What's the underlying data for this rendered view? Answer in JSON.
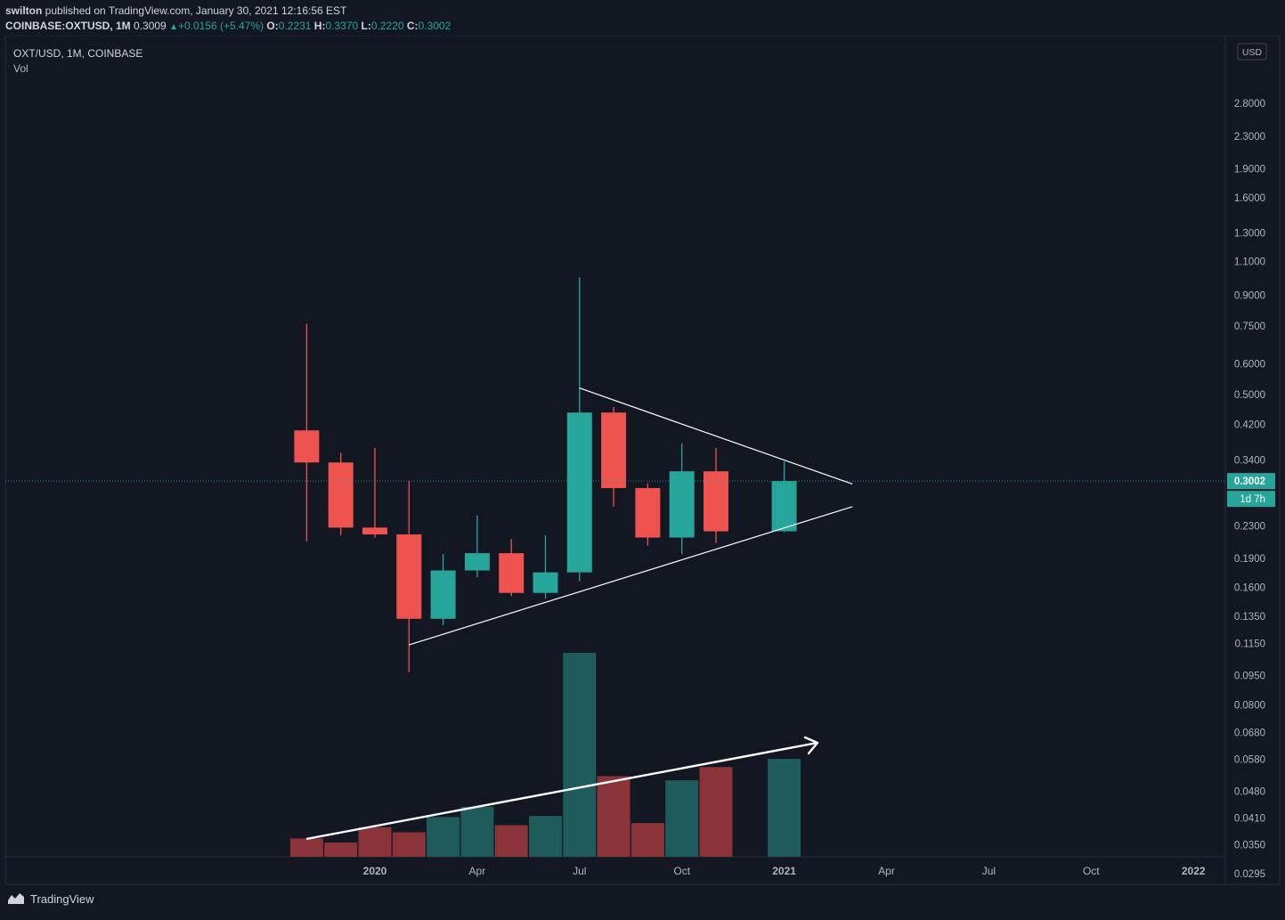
{
  "header": {
    "publisher_user": "swilton",
    "publisher_suffix": " published on TradingView.com, January 30, 2021 12:16:56 EST",
    "symbol_full": "COINBASE:OXTUSD, 1M",
    "price": "0.3009",
    "change_arrow": "▲",
    "change": "+0.0156 (+5.47%)",
    "o_label": "O:",
    "o_value": "0.2231",
    "h_label": "H:",
    "h_value": "0.3370",
    "l_label": "L:",
    "l_value": "0.2220",
    "c_label": "C:",
    "c_value": "0.3002"
  },
  "legend": {
    "symbol": "OXT/USD, 1M, COINBASE",
    "volume": "Vol"
  },
  "footer": {
    "brand": "TradingView"
  },
  "chart_data": {
    "type": "candlestick",
    "scale": "log",
    "currency": "USD",
    "price_ticks": [
      "2.8000",
      "2.3000",
      "1.9000",
      "1.6000",
      "1.3000",
      "1.1000",
      "0.9000",
      "0.7500",
      "0.6000",
      "0.5000",
      "0.4200",
      "0.3400",
      "0.2300",
      "0.1900",
      "0.1600",
      "0.1350",
      "0.1150",
      "0.0950",
      "0.0800",
      "0.0680",
      "0.0580",
      "0.0480",
      "0.0410",
      "0.0350",
      "0.0295"
    ],
    "time_labels": [
      "2020",
      "Apr",
      "Jul",
      "Oct",
      "2021",
      "Apr",
      "Jul",
      "Oct",
      "2022"
    ],
    "last_price_label": "0.3002",
    "countdown_label": "1d 7h",
    "colors": {
      "up": "#26a69a",
      "down": "#ef5350",
      "vol_up": "#1e5b5a",
      "vol_down": "#8a3338",
      "background": "#131722"
    },
    "candles": [
      {
        "month": "2019-11",
        "open": 0.405,
        "high": 0.76,
        "low": 0.21,
        "close": 0.335
      },
      {
        "month": "2019-12",
        "open": 0.335,
        "high": 0.355,
        "low": 0.218,
        "close": 0.228
      },
      {
        "month": "2020-01",
        "open": 0.228,
        "high": 0.365,
        "low": 0.215,
        "close": 0.219
      },
      {
        "month": "2020-02",
        "open": 0.219,
        "high": 0.3,
        "low": 0.097,
        "close": 0.133
      },
      {
        "month": "2020-03",
        "open": 0.133,
        "high": 0.195,
        "low": 0.128,
        "close": 0.177
      },
      {
        "month": "2020-04",
        "open": 0.177,
        "high": 0.245,
        "low": 0.17,
        "close": 0.196
      },
      {
        "month": "2020-05",
        "open": 0.196,
        "high": 0.213,
        "low": 0.152,
        "close": 0.155
      },
      {
        "month": "2020-06",
        "open": 0.155,
        "high": 0.218,
        "low": 0.15,
        "close": 0.175
      },
      {
        "month": "2020-07",
        "open": 0.175,
        "high": 1.0,
        "low": 0.166,
        "close": 0.45
      },
      {
        "month": "2020-08",
        "open": 0.45,
        "high": 0.465,
        "low": 0.258,
        "close": 0.288
      },
      {
        "month": "2020-09",
        "open": 0.288,
        "high": 0.296,
        "low": 0.205,
        "close": 0.215
      },
      {
        "month": "2020-10",
        "open": 0.215,
        "high": 0.375,
        "low": 0.195,
        "close": 0.318
      },
      {
        "month": "2020-11",
        "open": 0.318,
        "high": 0.365,
        "low": 0.208,
        "close": 0.223
      },
      {
        "month": "2021-01",
        "open": 0.2231,
        "high": 0.337,
        "low": 0.222,
        "close": 0.3002
      }
    ],
    "volume": {
      "relative": [
        0.09,
        0.07,
        0.145,
        0.12,
        0.195,
        0.245,
        0.155,
        0.2,
        1.0,
        0.395,
        0.165,
        0.375,
        0.44,
        0.48
      ],
      "direction": [
        "down",
        "down",
        "down",
        "down",
        "up",
        "up",
        "down",
        "up",
        "up",
        "down",
        "down",
        "up",
        "down",
        "up"
      ]
    },
    "annotations": [
      {
        "type": "trendline",
        "from": {
          "month": "2020-07",
          "price": 0.52
        },
        "to": {
          "month": "2021-03",
          "price": 0.295
        },
        "color": "#ffffff"
      },
      {
        "type": "trendline",
        "from": {
          "month": "2020-02",
          "price": 0.114
        },
        "to": {
          "month": "2021-03",
          "price": 0.258
        },
        "color": "#ffffff"
      },
      {
        "type": "volume-arrow",
        "direction": "rising",
        "color": "#ffffff"
      }
    ]
  }
}
